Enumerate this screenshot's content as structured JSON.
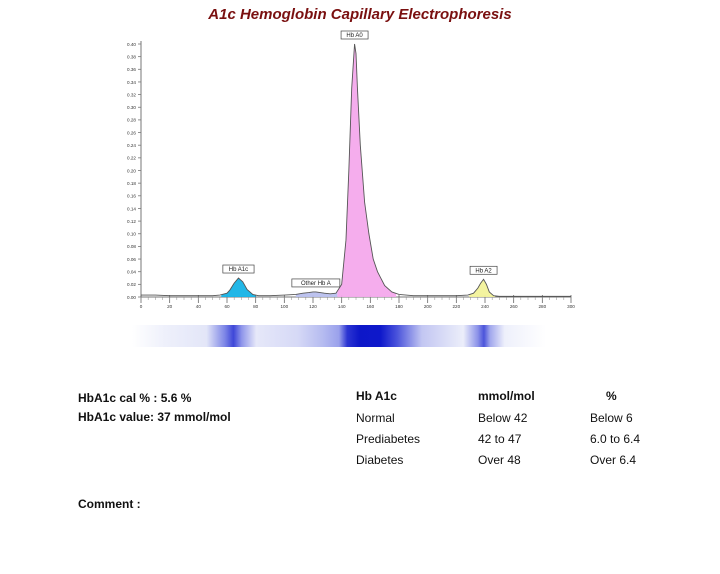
{
  "chart_data": {
    "type": "line",
    "title": "A1c Hemoglobin Capillary Electrophoresis",
    "xlim": [
      0,
      300
    ],
    "ylim": [
      0,
      0.4
    ],
    "x_ticks": [
      "0",
      "20",
      "40",
      "60",
      "80",
      "100",
      "120",
      "140",
      "160",
      "180",
      "200",
      "220",
      "240",
      "260",
      "280",
      "300"
    ],
    "y_ticks": [
      "0.00",
      "0.02",
      "0.04",
      "0.06",
      "0.08",
      "0.10",
      "0.12",
      "0.14",
      "0.16",
      "0.18",
      "0.20",
      "0.22",
      "0.24",
      "0.26",
      "0.28",
      "0.30",
      "0.32",
      "0.34",
      "0.36",
      "0.38",
      "0.40"
    ],
    "peaks": [
      {
        "label": "Hb A1c",
        "center": 68,
        "height": 0.03,
        "color": "#16b3e6"
      },
      {
        "label": "Other Hb A",
        "center": 122,
        "height": 0.008,
        "color": "#b9c0ee"
      },
      {
        "label": "Hb A0",
        "center": 149,
        "height": 0.4,
        "color": "#f4a9ec"
      },
      {
        "label": "Hb A2",
        "center": 239,
        "height": 0.028,
        "color": "#f2f29a"
      }
    ],
    "series": [
      {
        "x": [
          0,
          10,
          20,
          30,
          40,
          50,
          55,
          60,
          62,
          65,
          68,
          71,
          74,
          78,
          82,
          90,
          100,
          108,
          113,
          117,
          120,
          122,
          125,
          128,
          132,
          136,
          140,
          143,
          145,
          147,
          149,
          150,
          151,
          153,
          156,
          159,
          162,
          165,
          170,
          175,
          180,
          190,
          200,
          210,
          220,
          228,
          232,
          235,
          237,
          239,
          241,
          243,
          246,
          250,
          260,
          270,
          280,
          290,
          300
        ],
        "y": [
          0.003,
          0.003,
          0.002,
          0.002,
          0.002,
          0.002,
          0.003,
          0.006,
          0.011,
          0.022,
          0.03,
          0.024,
          0.012,
          0.004,
          0.002,
          0.002,
          0.003,
          0.004,
          0.006,
          0.007,
          0.008,
          0.008,
          0.007,
          0.006,
          0.005,
          0.006,
          0.02,
          0.09,
          0.2,
          0.33,
          0.4,
          0.385,
          0.33,
          0.24,
          0.15,
          0.1,
          0.06,
          0.04,
          0.018,
          0.008,
          0.004,
          0.002,
          0.002,
          0.002,
          0.002,
          0.003,
          0.006,
          0.014,
          0.022,
          0.028,
          0.02,
          0.008,
          0.002,
          0.001,
          0.001,
          0.001,
          0.001,
          0.001,
          0.001
        ]
      }
    ]
  },
  "results": {
    "cal": "HbA1c cal % : 5.6 %",
    "value": "HbA1c value:  37 mmol/mol"
  },
  "reference_table": {
    "headers": [
      "Hb A1c",
      "mmol/mol",
      "%"
    ],
    "rows": [
      [
        "Normal",
        "Below 42",
        "Below 6"
      ],
      [
        "Prediabetes",
        "42 to 47",
        "6.0 to 6.4"
      ],
      [
        "Diabetes",
        "Over 48",
        "Over 6.4"
      ]
    ]
  },
  "comment_label": "Comment :"
}
